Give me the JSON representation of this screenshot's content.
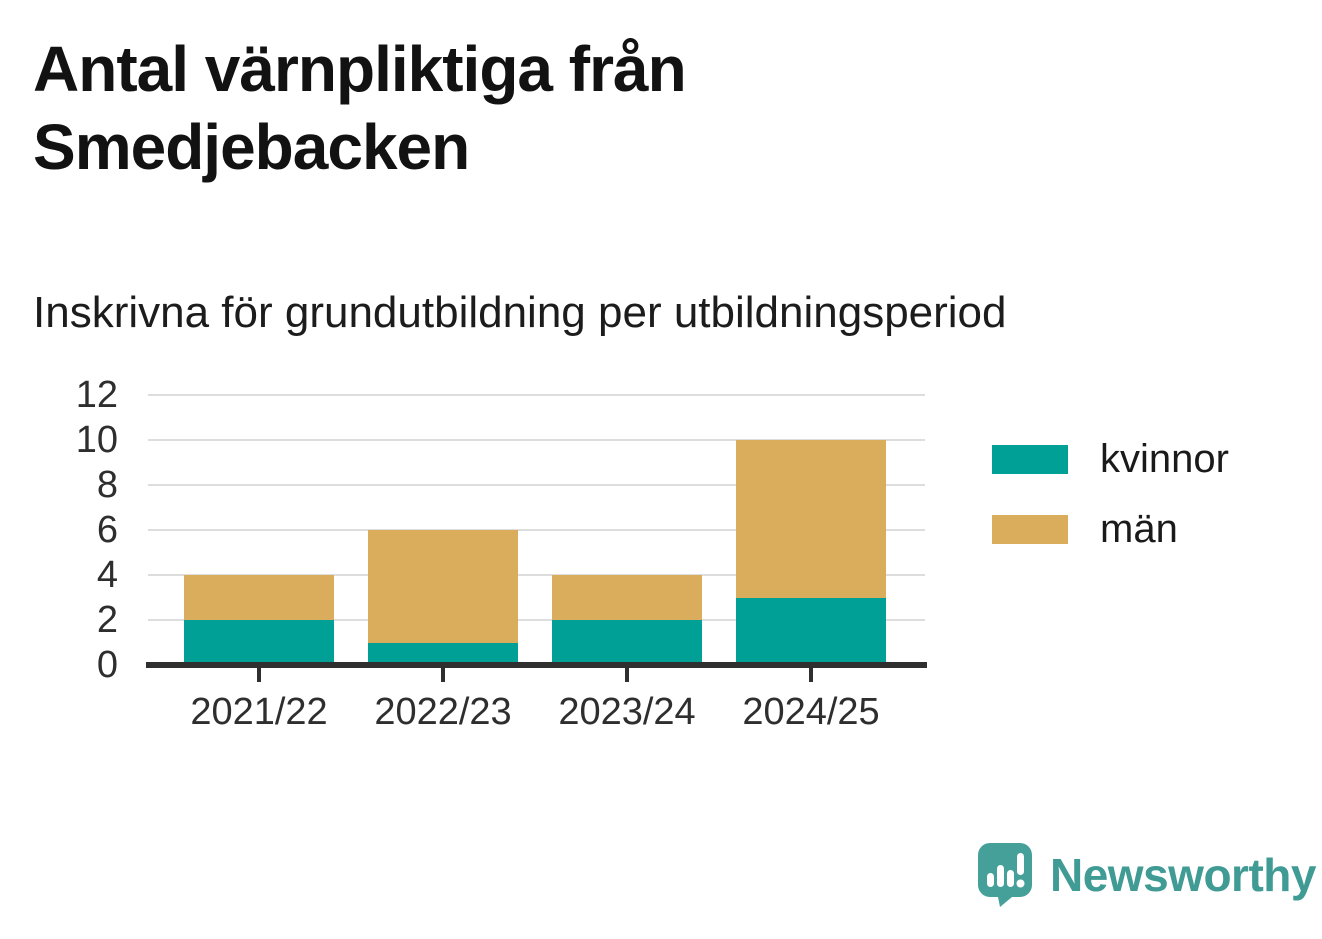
{
  "header": {
    "title": "Antal värnpliktiga från Smedjebacken",
    "subtitle": "Inskrivna för grundutbildning per utbildningsperiod"
  },
  "chart_data": {
    "type": "bar",
    "stacked": true,
    "title": "Antal värnpliktiga från Smedjebacken",
    "subtitle": "Inskrivna för grundutbildning per utbildningsperiod",
    "categories": [
      "2021/22",
      "2022/23",
      "2023/24",
      "2024/25"
    ],
    "series": [
      {
        "name": "kvinnor",
        "color": "#00a096",
        "values": [
          2,
          1,
          2,
          3
        ]
      },
      {
        "name": "män",
        "color": "#d9ad5c",
        "values": [
          2,
          5,
          2,
          7
        ]
      }
    ],
    "stack_totals": [
      4,
      6,
      4,
      10
    ],
    "ylim": [
      0,
      12
    ],
    "yticks": [
      0,
      2,
      4,
      6,
      8,
      10,
      12
    ],
    "xlabel": "",
    "ylabel": "",
    "grid": true,
    "legend_position": "right"
  },
  "branding": {
    "name": "Newsworthy",
    "icon": "speech-bubble-bar-chart-icon",
    "brand_color": "#3f9b94"
  }
}
